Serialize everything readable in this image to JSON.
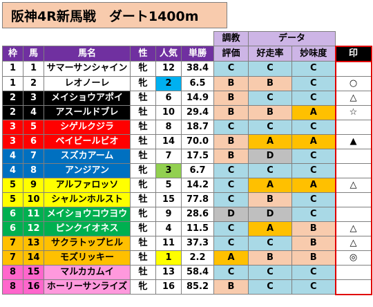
{
  "title": "阪神4R新馬戦　ダート1400m",
  "header": {
    "group_chokyo": "調教",
    "group_data": "データ",
    "waku": "枠",
    "uma": "馬",
    "bamei": "馬名",
    "sei": "性",
    "ninki": "人気",
    "tansho": "単勝",
    "hyoka": "評価",
    "kosoritsu": "好走率",
    "mimido": "妙味度",
    "shirushi": "印"
  },
  "colors": {
    "grade_A": "#ffc000",
    "grade_B": "#f8cbad",
    "grade_C": "#a9d9e6",
    "grade_D": "#bfbfbf",
    "ninki1": "#ffff00",
    "ninki2": "#00b0f0",
    "ninki3": "#92d050"
  },
  "rows": [
    {
      "waku": "1",
      "uma": "1",
      "name": "サマーサンシャイン",
      "sex": "牝",
      "ninki": "12",
      "odds": "38.4",
      "hyoka": "C",
      "kosoritsu": "C",
      "mimido": "C",
      "mark": "",
      "waku_bg": "#ffffff",
      "waku_fg": "#000000",
      "name_bg": "#ffffff",
      "name_fg": "#000000",
      "ninki_bg": ""
    },
    {
      "waku": "1",
      "uma": "2",
      "name": "レオノーレ",
      "sex": "牝",
      "ninki": "2",
      "odds": "6.5",
      "hyoka": "B",
      "kosoritsu": "B",
      "mimido": "C",
      "mark": "○",
      "waku_bg": "#ffffff",
      "waku_fg": "#000000",
      "name_bg": "#ffffff",
      "name_fg": "#000000",
      "ninki_bg": "#00b0f0"
    },
    {
      "waku": "2",
      "uma": "3",
      "name": "メイショウアポイ",
      "sex": "牡",
      "ninki": "6",
      "odds": "14.9",
      "hyoka": "B",
      "kosoritsu": "C",
      "mimido": "C",
      "mark": "△",
      "waku_bg": "#000000",
      "waku_fg": "#ffffff",
      "name_bg": "#000000",
      "name_fg": "#ffffff",
      "ninki_bg": ""
    },
    {
      "waku": "2",
      "uma": "4",
      "name": "アスールドブレ",
      "sex": "牡",
      "ninki": "10",
      "odds": "29.4",
      "hyoka": "B",
      "kosoritsu": "B",
      "mimido": "A",
      "mark": "☆",
      "waku_bg": "#000000",
      "waku_fg": "#ffffff",
      "name_bg": "#000000",
      "name_fg": "#ffffff",
      "ninki_bg": ""
    },
    {
      "waku": "3",
      "uma": "5",
      "name": "シゲルクジラ",
      "sex": "牡",
      "ninki": "8",
      "odds": "18.7",
      "hyoka": "C",
      "kosoritsu": "C",
      "mimido": "C",
      "mark": "",
      "waku_bg": "#ff0000",
      "waku_fg": "#ffffff",
      "name_bg": "#ff0000",
      "name_fg": "#ffffff",
      "ninki_bg": ""
    },
    {
      "waku": "3",
      "uma": "6",
      "name": "ベイビールビオ",
      "sex": "牡",
      "ninki": "14",
      "odds": "70.0",
      "hyoka": "B",
      "kosoritsu": "A",
      "mimido": "A",
      "mark": "▲",
      "waku_bg": "#ff0000",
      "waku_fg": "#ffffff",
      "name_bg": "#ff0000",
      "name_fg": "#ffffff",
      "ninki_bg": ""
    },
    {
      "waku": "4",
      "uma": "7",
      "name": "スズカアーム",
      "sex": "牡",
      "ninki": "7",
      "odds": "17.5",
      "hyoka": "B",
      "kosoritsu": "D",
      "mimido": "C",
      "mark": "",
      "waku_bg": "#0070c0",
      "waku_fg": "#ffffff",
      "name_bg": "#0070c0",
      "name_fg": "#ffffff",
      "ninki_bg": ""
    },
    {
      "waku": "4",
      "uma": "8",
      "name": "アンジアン",
      "sex": "牝",
      "ninki": "3",
      "odds": "6.7",
      "hyoka": "C",
      "kosoritsu": "C",
      "mimido": "C",
      "mark": "",
      "waku_bg": "#0070c0",
      "waku_fg": "#ffffff",
      "name_bg": "#0070c0",
      "name_fg": "#ffffff",
      "ninki_bg": "#92d050"
    },
    {
      "waku": "5",
      "uma": "9",
      "name": "アルファロッソ",
      "sex": "牝",
      "ninki": "5",
      "odds": "14.2",
      "hyoka": "C",
      "kosoritsu": "A",
      "mimido": "A",
      "mark": "△",
      "waku_bg": "#ffff00",
      "waku_fg": "#000000",
      "name_bg": "#ffff00",
      "name_fg": "#000000",
      "ninki_bg": ""
    },
    {
      "waku": "5",
      "uma": "10",
      "name": "シャルンホルスト",
      "sex": "牡",
      "ninki": "15",
      "odds": "77.8",
      "hyoka": "C",
      "kosoritsu": "B",
      "mimido": "C",
      "mark": "",
      "waku_bg": "#ffff00",
      "waku_fg": "#000000",
      "name_bg": "#ffff00",
      "name_fg": "#000000",
      "ninki_bg": ""
    },
    {
      "waku": "6",
      "uma": "11",
      "name": "メイショウコウヨウ",
      "sex": "牝",
      "ninki": "9",
      "odds": "28.6",
      "hyoka": "D",
      "kosoritsu": "D",
      "mimido": "C",
      "mark": "",
      "waku_bg": "#00b050",
      "waku_fg": "#ffffff",
      "name_bg": "#00b050",
      "name_fg": "#ffffff",
      "ninki_bg": ""
    },
    {
      "waku": "6",
      "uma": "12",
      "name": "ピンクイオネス",
      "sex": "牝",
      "ninki": "4",
      "odds": "11.5",
      "hyoka": "C",
      "kosoritsu": "A",
      "mimido": "B",
      "mark": "△",
      "waku_bg": "#00b050",
      "waku_fg": "#ffffff",
      "name_bg": "#00b050",
      "name_fg": "#ffffff",
      "ninki_bg": ""
    },
    {
      "waku": "7",
      "uma": "13",
      "name": "サクラトップヒル",
      "sex": "牡",
      "ninki": "11",
      "odds": "37.3",
      "hyoka": "C",
      "kosoritsu": "C",
      "mimido": "B",
      "mark": "△",
      "waku_bg": "#ffc000",
      "waku_fg": "#000000",
      "name_bg": "#ffc000",
      "name_fg": "#000000",
      "ninki_bg": ""
    },
    {
      "waku": "7",
      "uma": "14",
      "name": "モズリッキー",
      "sex": "牡",
      "ninki": "1",
      "odds": "2.2",
      "hyoka": "A",
      "kosoritsu": "B",
      "mimido": "B",
      "mark": "◎",
      "waku_bg": "#ffc000",
      "waku_fg": "#000000",
      "name_bg": "#ffc000",
      "name_fg": "#000000",
      "ninki_bg": "#ffff00"
    },
    {
      "waku": "8",
      "uma": "15",
      "name": "マルカカムイ",
      "sex": "牡",
      "ninki": "13",
      "odds": "58.4",
      "hyoka": "C",
      "kosoritsu": "C",
      "mimido": "C",
      "mark": "",
      "waku_bg": "#ff66cc",
      "waku_fg": "#000000",
      "name_bg": "#ff99dd",
      "name_fg": "#000000",
      "ninki_bg": ""
    },
    {
      "waku": "8",
      "uma": "16",
      "name": "ホーリーサンライズ",
      "sex": "牝",
      "ninki": "16",
      "odds": "85.2",
      "hyoka": "B",
      "kosoritsu": "C",
      "mimido": "C",
      "mark": "",
      "waku_bg": "#ff66cc",
      "waku_fg": "#000000",
      "name_bg": "#ff99dd",
      "name_fg": "#000000",
      "ninki_bg": ""
    }
  ]
}
